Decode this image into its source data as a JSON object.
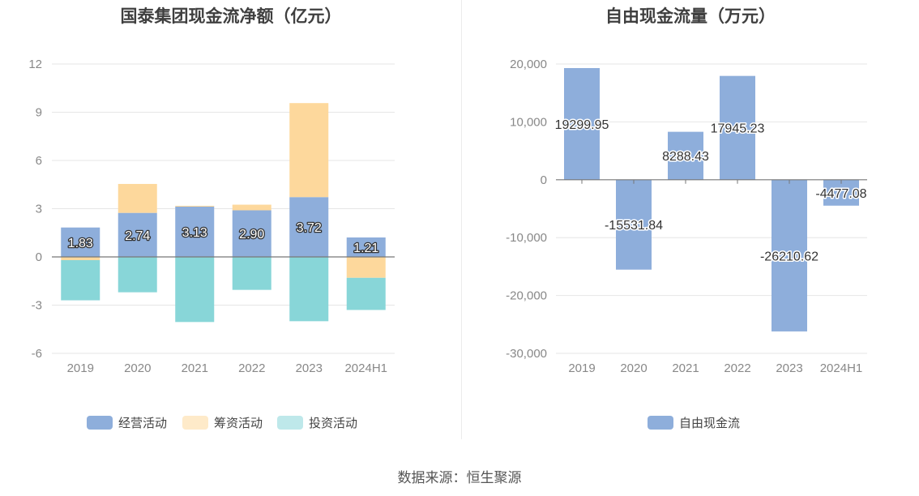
{
  "footer": {
    "source": "数据来源：恒生聚源"
  },
  "colors": {
    "operating": "#8eaedb",
    "financing": "#fdd89c",
    "investing": "#88d6d8",
    "free_cash_flow": "#8eaedb",
    "grid": "#e6e6e6",
    "axis_text": "#888888"
  },
  "chart_data": [
    {
      "type": "bar",
      "stacked": true,
      "title": "国泰集团现金流净额（亿元）",
      "categories": [
        "2019",
        "2020",
        "2021",
        "2022",
        "2023",
        "2024H1"
      ],
      "yticks": [
        "12",
        "9",
        "6",
        "3",
        "0",
        "-3",
        "-6"
      ],
      "ylim": [
        -6,
        12
      ],
      "series": [
        {
          "name": "经营活动",
          "values": [
            1.83,
            2.74,
            3.13,
            2.9,
            3.72,
            1.21
          ],
          "labels": [
            "1.83",
            "2.74",
            "3.13",
            "2.90",
            "3.72",
            "1.21"
          ]
        },
        {
          "name": "筹资活动",
          "values": [
            -0.2,
            1.8,
            0.05,
            0.35,
            5.85,
            -1.3
          ]
        },
        {
          "name": "投资活动",
          "values": [
            -2.5,
            -2.2,
            -4.05,
            -2.05,
            -4.0,
            -2.0
          ]
        }
      ],
      "legend": "bottom"
    },
    {
      "type": "bar",
      "title": "自由现金流量（万元）",
      "categories": [
        "2019",
        "2020",
        "2021",
        "2022",
        "2023",
        "2024H1"
      ],
      "yticks": [
        "20,000",
        "10,000",
        "0",
        "-10,000",
        "-20,000",
        "-30,000"
      ],
      "ylim": [
        -30000,
        20000
      ],
      "series": [
        {
          "name": "自由现金流",
          "values": [
            19299.95,
            -15531.84,
            8288.43,
            17945.23,
            -26210.62,
            -4477.08
          ],
          "labels": [
            "19299.95",
            "-15531.84",
            "8288.43",
            "17945.23",
            "-26210.62",
            "-4477.08"
          ]
        }
      ],
      "legend": "bottom"
    }
  ]
}
